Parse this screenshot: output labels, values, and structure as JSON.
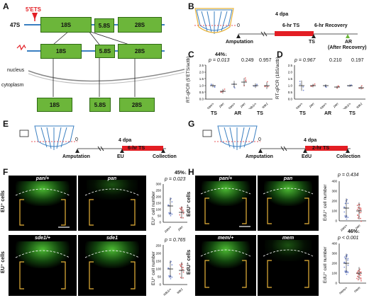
{
  "panelA": {
    "label": "A",
    "pre_rrna": "47S",
    "ets": "5'ETS",
    "r18": "18S",
    "r58": "5.8S",
    "r28": "28S",
    "nucleus": "nucleus",
    "cytoplasm": "cytoplasm"
  },
  "panelB": {
    "label": "B",
    "zero": "0",
    "dpa": "4 dpa",
    "ts_bar": "6-hr TS",
    "recovery": "6-hr Recovery",
    "amputation": "Amputation",
    "ts": "TS",
    "ar": "AR",
    "after_recovery": "(After Recovery)"
  },
  "panelC": {
    "label": "C",
    "ylabel": "RT-qPCR (5'ETS/actb)",
    "pct": "44%↓",
    "pvals": [
      "p = 0.013",
      "0.249",
      "0.957"
    ],
    "groups": [
      "pan/+",
      "pan",
      "pan/+",
      "pan",
      "sde1/+",
      "sde1"
    ],
    "conds": [
      "TS",
      "AR",
      "TS"
    ],
    "yticks": [
      "0.0",
      "0.5",
      "1.0",
      "1.5",
      "2.0",
      "2.5"
    ]
  },
  "panelD": {
    "label": "D",
    "ylabel": "RT-qPCR (18S/actb)",
    "pvals": [
      "p = 0.967",
      "0.210",
      "0.197"
    ],
    "groups": [
      "pan/+",
      "pan",
      "pan/+",
      "pan",
      "sde1/+",
      "sde1"
    ],
    "conds": [
      "TS",
      "AR",
      "TS"
    ],
    "yticks": [
      "0.0",
      "0.5",
      "1.0",
      "1.5",
      "2.0",
      "2.5"
    ]
  },
  "panelE": {
    "label": "E",
    "zero": "0",
    "dpa": "4 dpa",
    "ts_bar": "6-hr TS",
    "amputation": "Amputation",
    "marker": "EU",
    "collection": "Collection"
  },
  "panelF": {
    "label": "F",
    "row_label": "EU⁺ cells",
    "img1": "pan/+",
    "img2": "pan",
    "img3": "sde1/+",
    "img4": "sde1",
    "ylabel": "EU⁺ cell number",
    "plot1": {
      "pct": "45%↓",
      "p": "p = 0.023",
      "groups": [
        "pan/+",
        "pan"
      ],
      "yticks": [
        "0",
        "50",
        "100",
        "150",
        "200",
        "250",
        "300"
      ]
    },
    "plot2": {
      "p": "p = 0.765",
      "groups": [
        "sde1/+",
        "sde1"
      ],
      "yticks": [
        "0",
        "50",
        "100",
        "150",
        "200",
        "250"
      ]
    }
  },
  "panelG": {
    "label": "G",
    "zero": "0",
    "dpa": "4 dpa",
    "ts_bar": "2-hr TS",
    "amputation": "Amputation",
    "marker": "EdU",
    "collection": "Collection"
  },
  "panelH": {
    "label": "H",
    "row_label": "EdU⁺ cells",
    "img1": "pan/+",
    "img2": "pan",
    "img3": "mem/+",
    "img4": "mem",
    "ylabel": "EdU⁺ cell number",
    "plot1": {
      "p": "p = 0.434",
      "groups": [
        "pan/+",
        "pan"
      ],
      "yticks": [
        "0",
        "100",
        "200",
        "300",
        "400"
      ]
    },
    "plot2": {
      "pct": "46%↓",
      "p": "p < 0.001",
      "groups": [
        "mem/+",
        "mem"
      ],
      "yticks": [
        "0",
        "100",
        "200",
        "300",
        "400"
      ]
    }
  },
  "colors": {
    "rrna_box": "#6cb63a",
    "ts_bar": "#e31e24",
    "ets_marker": "#e31e24",
    "ctrl_points": "#7b8fd6",
    "mut_points": "#e06a6a",
    "bracket": "#e8b33a"
  }
}
